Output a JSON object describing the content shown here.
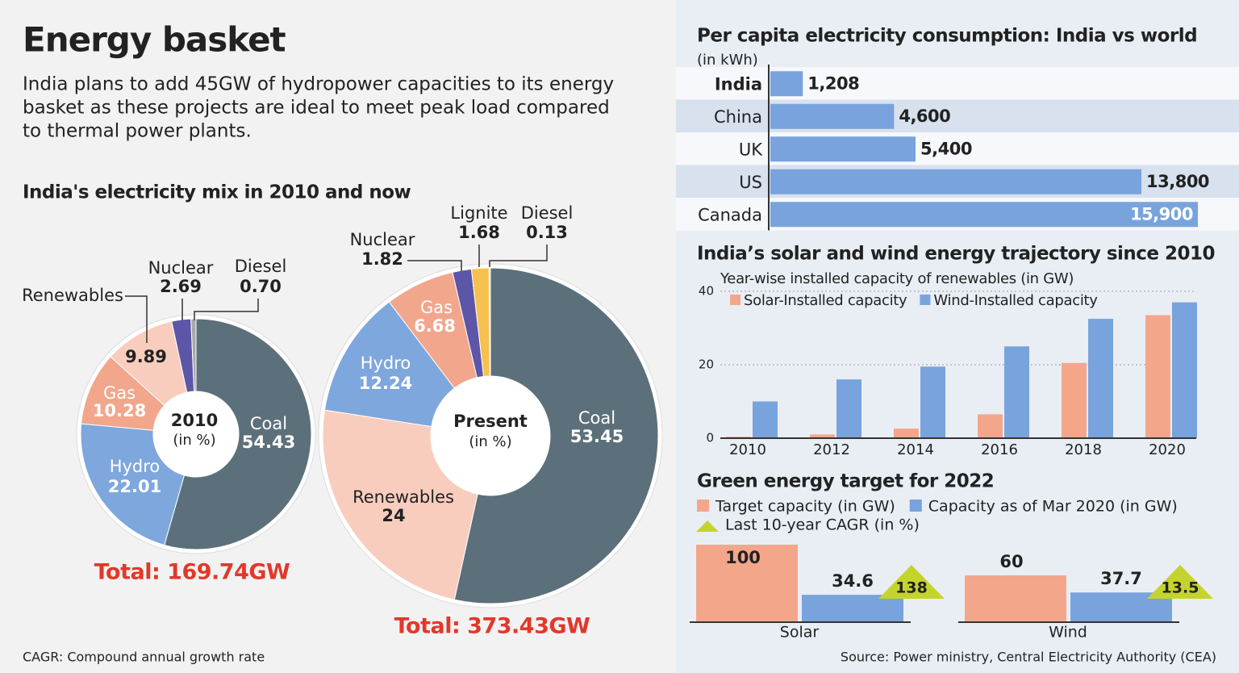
{
  "header": {
    "title": "Energy basket",
    "description": [
      "India plans to add 45GW of hydropower capacities to its energy",
      "basket as these projects are ideal to meet peak load compared",
      "to thermal power plants."
    ],
    "mix_title": "India's electricity mix in 2010 and now"
  },
  "footer": {
    "note": "CAGR: Compound annual growth rate",
    "source": "Source: Power ministry, Central Electricity Authority (CEA)"
  },
  "chart_data": [
    {
      "type": "pie",
      "center_label": "2010",
      "center_note": "(in %)",
      "total": "Total: 169.74GW",
      "categories": [
        "Coal",
        "Hydro",
        "Gas",
        "Renewables",
        "Nuclear",
        "Diesel"
      ],
      "values": [
        54.43,
        22.01,
        10.28,
        9.89,
        2.69,
        0.7
      ],
      "value_labels": [
        "54.43",
        "22.01",
        "10.28",
        "9.89",
        "2.69",
        "0.70"
      ],
      "colors": [
        "#5c707b",
        "#7ea7dd",
        "#f2a68c",
        "#f8cdbd",
        "#5c55a8",
        "#a8a8a8"
      ]
    },
    {
      "type": "pie",
      "center_label": "Present",
      "center_note": "(in %)",
      "total": "Total: 373.43GW",
      "categories": [
        "Coal",
        "Renewables",
        "Hydro",
        "Gas",
        "Nuclear",
        "Lignite",
        "Diesel"
      ],
      "values": [
        53.45,
        24,
        12.24,
        6.68,
        1.82,
        1.68,
        0.13
      ],
      "value_labels": [
        "53.45",
        "24",
        "12.24",
        "6.68",
        "1.82",
        "1.68",
        "0.13"
      ],
      "colors": [
        "#5c707b",
        "#f8cdbd",
        "#7ea7dd",
        "#f2a68c",
        "#5c55a8",
        "#f6c14e",
        "#d9d9d9"
      ]
    },
    {
      "type": "hbar",
      "title": "Per capita electricity consumption: India vs world",
      "subtitle": "(in kWh)",
      "categories": [
        "India",
        "China",
        "UK",
        "US",
        "Canada"
      ],
      "values": [
        1208,
        4600,
        5400,
        13800,
        15900
      ],
      "value_labels": [
        "1,208",
        "4,600",
        "5,400",
        "13,800",
        "15,900"
      ],
      "color": "#79a3dc"
    },
    {
      "type": "grouped_bar",
      "title": "India’s solar and wind energy trajectory since 2010",
      "subtitle": "Year-wise installed capacity of renewables (in GW)",
      "categories": [
        "2010",
        "2012",
        "2014",
        "2016",
        "2018",
        "2020"
      ],
      "series": [
        {
          "name": "Solar-Installed capacity",
          "color": "#f4a68b",
          "values": [
            0.4,
            1,
            2.6,
            6.5,
            20.5,
            33.5
          ]
        },
        {
          "name": "Wind-Installed capacity",
          "color": "#79a3dc",
          "values": [
            10,
            16,
            19.5,
            25,
            32.5,
            37
          ]
        }
      ],
      "ylim": [
        0,
        40
      ],
      "yticks": [
        0,
        20,
        40
      ],
      "grid": true
    },
    {
      "type": "target_bar",
      "title": "Green energy target for 2022",
      "categories": [
        "Solar",
        "Wind"
      ],
      "series": [
        {
          "name": "Target capacity (in GW)",
          "color": "#f4a68b",
          "values": [
            100,
            60
          ]
        },
        {
          "name": "Capacity as of Mar 2020 (in GW)",
          "color": "#79a3dc",
          "values": [
            34.6,
            37.7
          ]
        }
      ],
      "cagr": {
        "name": "Last 10-year CAGR (in %)",
        "color": "#c5d42c",
        "values": [
          138,
          13.5
        ]
      }
    }
  ]
}
